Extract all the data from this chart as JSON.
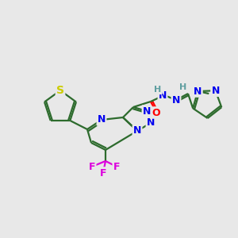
{
  "background_color": "#e8e8e8",
  "bond_color": "#2d6b2d",
  "bond_width": 1.6,
  "atom_colors": {
    "N": "#0000ee",
    "S": "#cccc00",
    "F": "#dd00dd",
    "O": "#ff0000",
    "H_label": "#5f9ea0",
    "C": "#2d6b2d"
  },
  "figsize": [
    3.0,
    3.0
  ],
  "dpi": 100
}
